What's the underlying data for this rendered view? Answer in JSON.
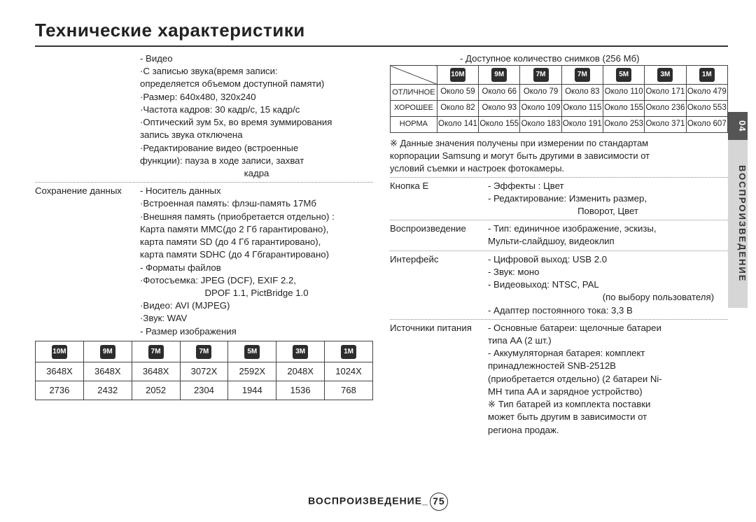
{
  "title": "Технические характеристики",
  "side_tab": {
    "num": "04",
    "label": "ВОСПРОИЗВЕДЕНИЕ"
  },
  "footer": {
    "label": "ВОСПРОИЗВЕДЕНИЕ_",
    "page": "75"
  },
  "left": {
    "video_heading": "- Видео",
    "video_lines": [
      "·С записью звука(время записи:",
      " определяется объемом доступной памяти)",
      "·Размер: 640x480, 320x240",
      "·Частота кадров: 30 кадр/с, 15 кадр/с",
      "·Оптический зум 5x, во время зуммирования",
      " запись звука отключена",
      "·Редактирование видео (встроенные",
      " функции): пауза в ходе записи, захват"
    ],
    "video_sub": "кадра",
    "storage_label": "Сохранение данных",
    "storage_lines": [
      "- Носитель данных",
      " ·Встроенная память: флэш-память 17Мб",
      " ·Внешняя память (приобретается отдельно) :",
      "  Карта памяти MMC(до 2 Гб гарантировано),",
      "  карта памяти SD (до 4 Гб гарантировано),",
      "  карта памяти SDHC (до 4 Гбгарантировано)",
      "- Форматы файлов",
      " ·Фотосъемка: JPEG (DCF), EXIF 2.2,"
    ],
    "storage_sub": "DPOF 1.1, PictBridge 1.0",
    "storage_lines2": [
      " ·Видео: AVI (MJPEG)",
      " ·Звук: WAV",
      "- Размер изображения"
    ],
    "res_table": {
      "icons": [
        "10M",
        "9M",
        "7M",
        "7M",
        "5M",
        "3M",
        "1M"
      ],
      "rows": [
        [
          "3648X",
          "3648X",
          "3648X",
          "3072X",
          "2592X",
          "2048X",
          "1024X"
        ],
        [
          "2736",
          "2432",
          "2052",
          "2304",
          "1944",
          "1536",
          "768"
        ]
      ]
    }
  },
  "right": {
    "shots_caption": "- Доступное количество снимков (256 Мб)",
    "shots_table": {
      "icons": [
        "10M",
        "9M",
        "7M",
        "7M",
        "5M",
        "3M",
        "1M"
      ],
      "row_labels": [
        "ОТЛИЧНОЕ",
        "ХОРОШЕЕ",
        "НОРМА"
      ],
      "rows": [
        [
          "Около 59",
          "Около 66",
          "Около 79",
          "Около 83",
          "Около 110",
          "Около 171",
          "Около 479"
        ],
        [
          "Около 82",
          "Около 93",
          "Около 109",
          "Около 115",
          "Около 155",
          "Около 236",
          "Около 553"
        ],
        [
          "Около 141",
          "Около 155",
          "Около 183",
          "Около 191",
          "Около 253",
          "Около 371",
          "Около 607"
        ]
      ]
    },
    "shots_footnote": [
      "※ Данные значения получены при измерении по стандартам",
      "    корпорации Samsung и могут быть другими в зависимости от",
      "    условий съемки и настроек фотокамеры."
    ],
    "btnE_label": "Кнопка Е",
    "btnE_lines": [
      "- Эффекты : Цвет",
      "- Редактирование: Изменить размер,"
    ],
    "btnE_sub": "Поворот, Цвет",
    "playback_label": "Воспроизведение",
    "playback_lines": [
      "- Тип: единичное изображение, эскизы,",
      "  Мульти-слайдшоу, видеоклип"
    ],
    "iface_label": "Интерфейс",
    "iface_lines": [
      "- Цифровой выход: USB 2.0",
      "- Звук: моно",
      "- Видеовыход: NTSC, PAL"
    ],
    "iface_sub": "(по выбору пользователя)",
    "iface_lines2": [
      "- Адаптер постоянного тока: 3,3 В"
    ],
    "power_label": "Источники питания",
    "power_lines": [
      "- Основные батареи: щелочные батареи",
      "  типа AA (2 шт.)",
      "- Аккумуляторная батарея: комплект",
      "  принадлежностей SNB-2512B",
      "  (приобретается отдельно) (2 батареи Ni-",
      "  MH типа AA и зарядное устройство)",
      "※ Тип батарей из комплекта поставки",
      "   может быть другим в зависимости от",
      "   региона продаж."
    ]
  }
}
